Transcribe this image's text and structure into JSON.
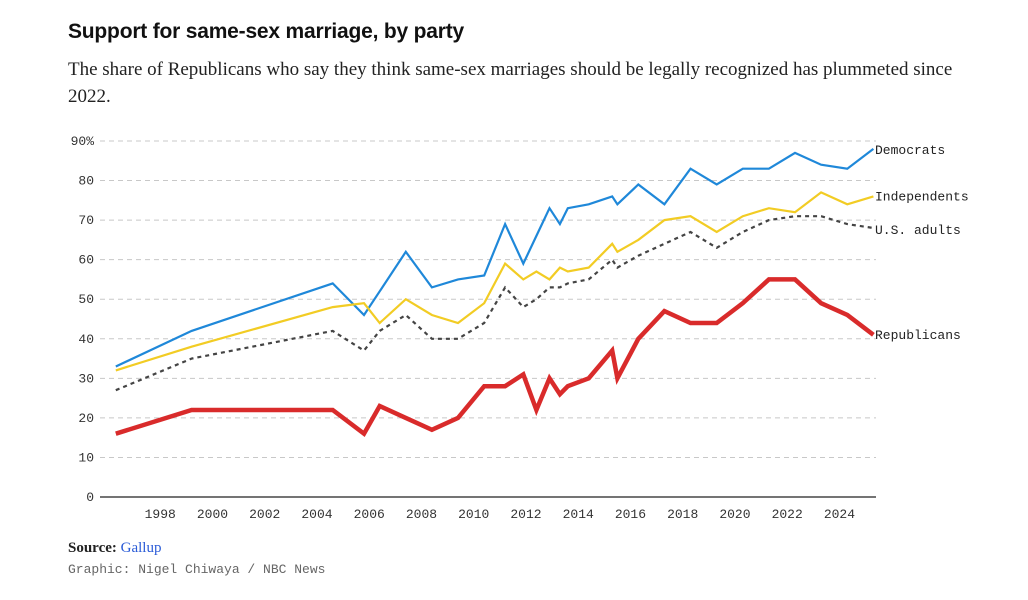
{
  "header": {
    "title": "Support for same-sex marriage, by party",
    "subtitle": "The share of Republicans who say they think same-sex marriages should be legally recognized has plummeted since 2022."
  },
  "footer": {
    "source_label": "Source:",
    "source_name": "Gallup",
    "credit": "Graphic: Nigel Chiwaya / NBC News"
  },
  "colors": {
    "democrats": "#1f88d9",
    "independents": "#f2cc24",
    "us_adults": "#444444",
    "republicans": "#d92b2b",
    "grid": "#c8c8c8"
  },
  "chart_data": {
    "type": "line",
    "title": "Support for same-sex marriage, by party",
    "xlabel": "",
    "ylabel": "",
    "xlim": [
      1996,
      2025.4
    ],
    "ylim": [
      0,
      90
    ],
    "yticks": [
      0,
      10,
      20,
      30,
      40,
      50,
      60,
      70,
      80,
      90
    ],
    "ytick_labels": [
      "0",
      "10",
      "20",
      "30",
      "40",
      "50",
      "60",
      "70",
      "80",
      "90%"
    ],
    "xticks": [
      1998,
      2000,
      2002,
      2004,
      2006,
      2008,
      2010,
      2012,
      2014,
      2016,
      2018,
      2020,
      2022,
      2024
    ],
    "xtick_labels": [
      "1998",
      "2000",
      "2002",
      "2004",
      "2006",
      "2008",
      "2010",
      "2012",
      "2014",
      "2016",
      "2018",
      "2020",
      "2022",
      "2024"
    ],
    "grid": true,
    "series": [
      {
        "name": "Democrats",
        "key": "democrats",
        "style": "solid",
        "x": [
          1996.3,
          1999.2,
          2004.6,
          2005.8,
          2006.4,
          2007.4,
          2008.4,
          2009.4,
          2010.4,
          2011.2,
          2011.9,
          2012.4,
          2012.9,
          2013.3,
          2013.6,
          2014.4,
          2015.3,
          2015.5,
          2016.3,
          2017.3,
          2018.3,
          2019.3,
          2020.3,
          2021.3,
          2022.3,
          2023.3,
          2024.3,
          2025.3
        ],
        "values": [
          33,
          42,
          54,
          46,
          52,
          62,
          53,
          55,
          56,
          69,
          59,
          66,
          73,
          69,
          73,
          74,
          76,
          74,
          79,
          74,
          83,
          79,
          83,
          83,
          87,
          84,
          83,
          88
        ]
      },
      {
        "name": "Independents",
        "key": "independents",
        "style": "solid",
        "x": [
          1996.3,
          1999.2,
          2004.6,
          2005.8,
          2006.4,
          2007.4,
          2008.4,
          2009.4,
          2010.4,
          2011.2,
          2011.9,
          2012.4,
          2012.9,
          2013.3,
          2013.6,
          2014.4,
          2015.3,
          2015.5,
          2016.3,
          2017.3,
          2018.3,
          2019.3,
          2020.3,
          2021.3,
          2022.3,
          2023.3,
          2024.3,
          2025.3
        ],
        "values": [
          32,
          38,
          48,
          49,
          44,
          50,
          46,
          44,
          49,
          59,
          55,
          57,
          55,
          58,
          57,
          58,
          64,
          62,
          65,
          70,
          71,
          67,
          71,
          73,
          72,
          77,
          74,
          76
        ]
      },
      {
        "name": "U.S. adults",
        "key": "us_adults",
        "style": "dashed",
        "x": [
          1996.3,
          1999.2,
          2004.6,
          2005.8,
          2006.4,
          2007.4,
          2008.4,
          2009.4,
          2010.4,
          2011.2,
          2011.9,
          2012.4,
          2012.9,
          2013.3,
          2013.6,
          2014.4,
          2015.3,
          2015.5,
          2016.3,
          2017.3,
          2018.3,
          2019.3,
          2020.3,
          2021.3,
          2022.3,
          2023.3,
          2024.3,
          2025.3
        ],
        "values": [
          27,
          35,
          42,
          37,
          42,
          46,
          40,
          40,
          44,
          53,
          48,
          50,
          53,
          53,
          54,
          55,
          60,
          58,
          61,
          64,
          67,
          63,
          67,
          70,
          71,
          71,
          69,
          68
        ]
      },
      {
        "name": "Republicans",
        "key": "republicans",
        "style": "solid",
        "x": [
          1996.3,
          1999.2,
          2004.6,
          2005.8,
          2006.4,
          2007.4,
          2008.4,
          2009.4,
          2010.4,
          2011.2,
          2011.9,
          2012.4,
          2012.9,
          2013.3,
          2013.6,
          2014.4,
          2015.3,
          2015.5,
          2016.3,
          2017.3,
          2018.3,
          2019.3,
          2020.3,
          2021.3,
          2022.3,
          2023.3,
          2024.3,
          2025.3
        ],
        "values": [
          16,
          22,
          22,
          16,
          23,
          20,
          17,
          20,
          28,
          28,
          31,
          22,
          30,
          26,
          28,
          30,
          37,
          30,
          40,
          47,
          44,
          44,
          49,
          55,
          55,
          49,
          46,
          41
        ]
      }
    ],
    "legend": "labels at line ends, right"
  }
}
